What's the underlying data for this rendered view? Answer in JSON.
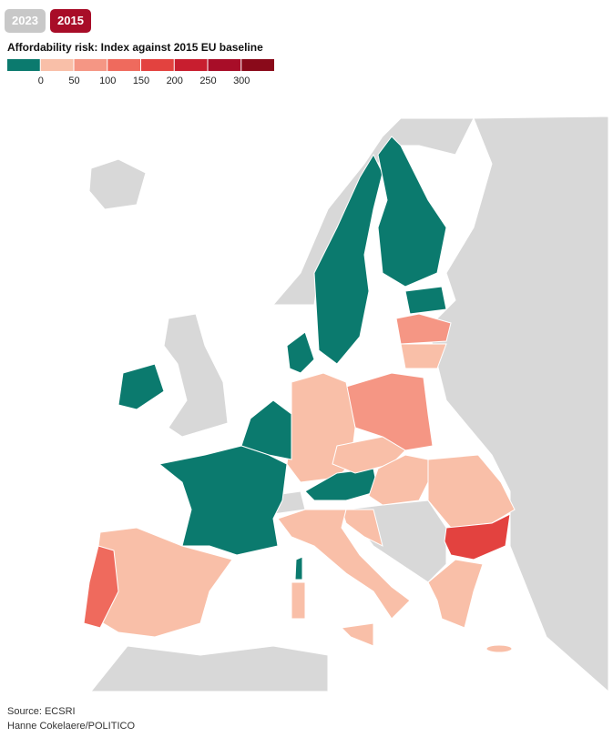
{
  "buttons": [
    "2023",
    "2015"
  ],
  "legend": {
    "title": "Affordability risk: Index against 2015 EU baseline",
    "colors": [
      "#0b7a6e",
      "#f9bfa8",
      "#f59684",
      "#ef6a5d",
      "#e3423f",
      "#c81e2f",
      "#a80d28",
      "#8a0a1a"
    ],
    "ticks": [
      0,
      50,
      100,
      150,
      200,
      250,
      300
    ]
  },
  "source": [
    "Source: ECSRI",
    "Hanne Cokelaere/POLITICO"
  ]
}
